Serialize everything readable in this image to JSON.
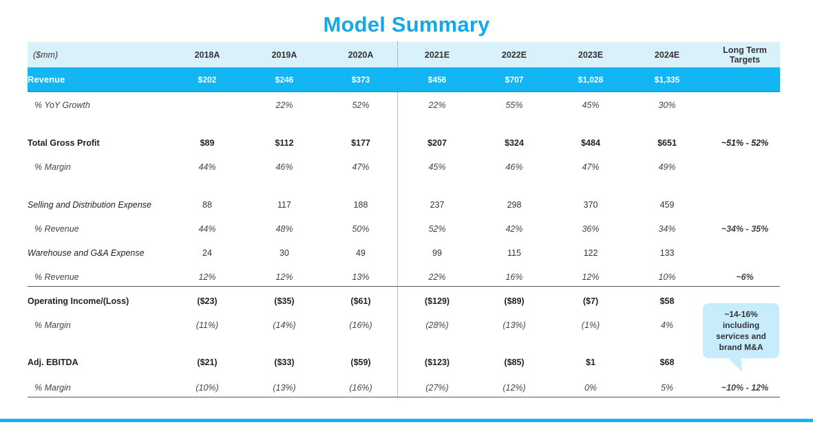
{
  "title": "Model Summary",
  "header": {
    "unit": "($mm)",
    "years": [
      "2018A",
      "2019A",
      "2020A",
      "2021E",
      "2022E",
      "2023E",
      "2024E"
    ],
    "lt_line1": "Long Term",
    "lt_line2": "Targets"
  },
  "rows": [
    {
      "label": "Revenue",
      "values": [
        "$202",
        "$246",
        "$373",
        "$456",
        "$707",
        "$1,028",
        "$1,335"
      ],
      "target": ""
    },
    {
      "label": "% YoY Growth",
      "values": [
        "",
        "22%",
        "52%",
        "22%",
        "55%",
        "45%",
        "30%"
      ],
      "target": ""
    },
    {
      "label": "Total Gross Profit",
      "values": [
        "$89",
        "$112",
        "$177",
        "$207",
        "$324",
        "$484",
        "$651"
      ],
      "target": "~51% - 52%"
    },
    {
      "label": "% Margin",
      "values": [
        "44%",
        "46%",
        "47%",
        "45%",
        "46%",
        "47%",
        "49%"
      ],
      "target": ""
    },
    {
      "label": "Selling and Distribution Expense",
      "values": [
        "88",
        "117",
        "188",
        "237",
        "298",
        "370",
        "459"
      ],
      "target": ""
    },
    {
      "label": "% Revenue",
      "values": [
        "44%",
        "48%",
        "50%",
        "52%",
        "42%",
        "36%",
        "34%"
      ],
      "target": "~34% - 35%"
    },
    {
      "label": "Warehouse and G&A Expense",
      "values": [
        "24",
        "30",
        "49",
        "99",
        "115",
        "122",
        "133"
      ],
      "target": ""
    },
    {
      "label": "% Revenue",
      "values": [
        "12%",
        "12%",
        "13%",
        "22%",
        "16%",
        "12%",
        "10%"
      ],
      "target": "~6%"
    },
    {
      "label": "Operating Income/(Loss)",
      "values": [
        "($23)",
        "($35)",
        "($61)",
        "($129)",
        "($89)",
        "($7)",
        "$58"
      ],
      "target": ""
    },
    {
      "label": "% Margin",
      "values": [
        "(11%)",
        "(14%)",
        "(16%)",
        "(28%)",
        "(13%)",
        "(1%)",
        "4%"
      ],
      "target": ""
    },
    {
      "label": "Adj. EBITDA",
      "values": [
        "($21)",
        "($33)",
        "($59)",
        "($123)",
        "($85)",
        "$1",
        "$68"
      ],
      "target": ""
    },
    {
      "label": "% Margin",
      "values": [
        "(10%)",
        "(13%)",
        "(16%)",
        "(27%)",
        "(12%)",
        "0%",
        "5%"
      ],
      "target": "~10% - 12%"
    }
  ],
  "callout": {
    "line1": "~14-16%",
    "line2": "including",
    "line3": "services and",
    "line4": "brand M&A"
  },
  "colors": {
    "accent": "#13b5f2",
    "title": "#13a9e6",
    "header_bg": "#d9f1fb",
    "callout_bg": "#c8ecfb"
  }
}
